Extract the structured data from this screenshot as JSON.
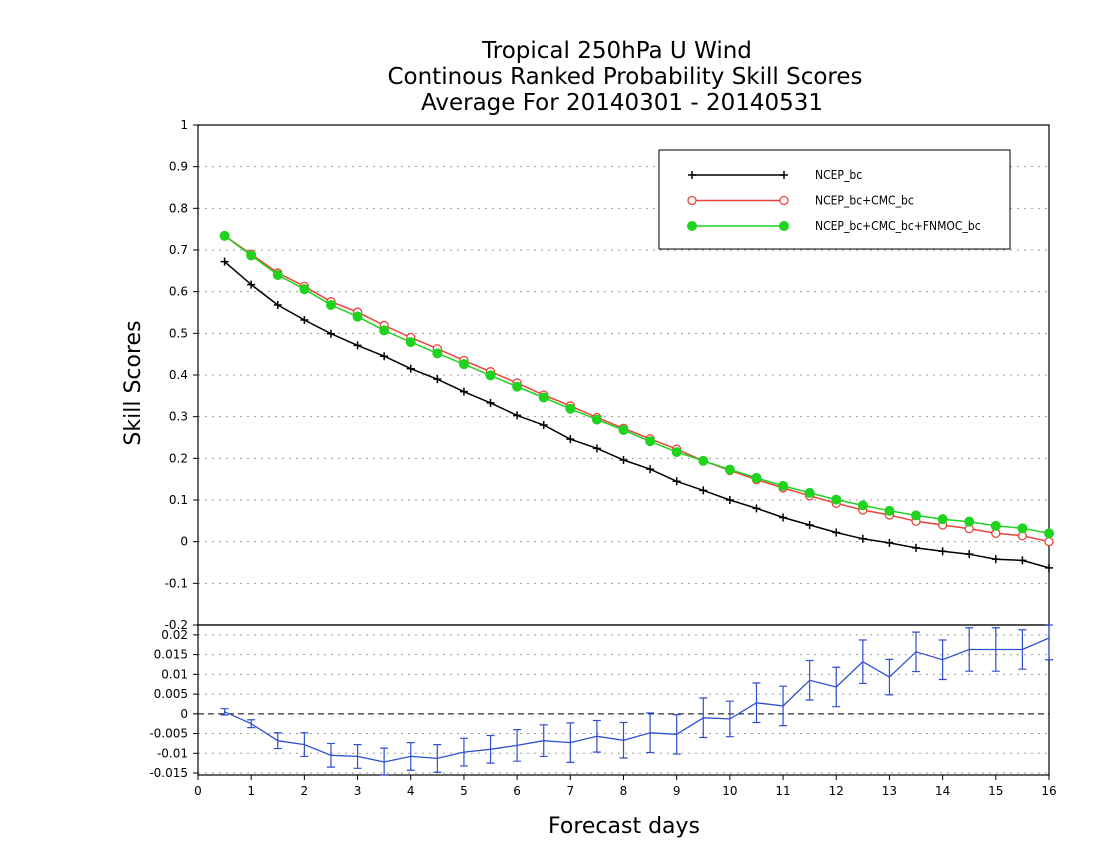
{
  "title_lines": [
    "Tropical 250hPa U Wind",
    "Continous Ranked Probability Skill Scores",
    "Average For 20140301 - 20140531"
  ],
  "colors": {
    "ncep": "#000000",
    "cmc": "#e8443a",
    "fnmoc": "#1fd31f",
    "diff": "#3050d0"
  },
  "chart_data": [
    {
      "type": "line",
      "ylabel": "Skill Scores",
      "xlim": [
        0,
        16
      ],
      "ylim": [
        -0.2,
        1
      ],
      "xticks": [
        "0",
        "1",
        "2",
        "3",
        "4",
        "5",
        "6",
        "7",
        "8",
        "9",
        "10",
        "11",
        "12",
        "13",
        "14",
        "15",
        "16"
      ],
      "yticks": [
        "-0.2",
        "-0.1",
        "0",
        "0.1",
        "0.2",
        "0.3",
        "0.4",
        "0.5",
        "0.6",
        "0.7",
        "0.8",
        "0.9",
        "1"
      ],
      "grid": true,
      "legend_position": "top-right",
      "x": [
        0.5,
        1,
        1.5,
        2,
        2.5,
        3,
        3.5,
        4,
        4.5,
        5,
        5.5,
        6,
        6.5,
        7,
        7.5,
        8,
        8.5,
        9,
        9.5,
        10,
        10.5,
        11,
        11.5,
        12,
        12.5,
        13,
        13.5,
        14,
        14.5,
        15,
        15.5,
        16
      ],
      "series": [
        {
          "name": "NCEP_bc",
          "marker": "plus",
          "values": [
            0.672,
            0.617,
            0.568,
            0.532,
            0.499,
            0.471,
            0.445,
            0.415,
            0.39,
            0.36,
            0.333,
            0.303,
            0.28,
            0.246,
            0.224,
            0.196,
            0.174,
            0.145,
            0.123,
            0.1,
            0.08,
            0.058,
            0.04,
            0.022,
            0.007,
            -0.003,
            -0.015,
            -0.023,
            -0.03,
            -0.042,
            -0.045,
            -0.063
          ]
        },
        {
          "name": "NCEP_bc+CMC_bc",
          "marker": "open-circle",
          "values": [
            0.734,
            0.69,
            0.645,
            0.613,
            0.576,
            0.551,
            0.519,
            0.49,
            0.463,
            0.435,
            0.408,
            0.381,
            0.352,
            0.326,
            0.298,
            0.272,
            0.247,
            0.222,
            0.194,
            0.171,
            0.149,
            0.129,
            0.11,
            0.092,
            0.076,
            0.064,
            0.049,
            0.04,
            0.031,
            0.02,
            0.014,
            0.0
          ]
        },
        {
          "name": "NCEP_bc+CMC_bc+FNMOC_bc",
          "marker": "filled-circle",
          "values": [
            0.734,
            0.687,
            0.64,
            0.606,
            0.568,
            0.54,
            0.507,
            0.479,
            0.452,
            0.426,
            0.399,
            0.372,
            0.346,
            0.319,
            0.293,
            0.268,
            0.241,
            0.215,
            0.194,
            0.173,
            0.153,
            0.134,
            0.117,
            0.101,
            0.087,
            0.074,
            0.063,
            0.054,
            0.048,
            0.038,
            0.032,
            0.02
          ]
        }
      ]
    },
    {
      "type": "line",
      "xlabel": "Forecast days",
      "xlim": [
        0,
        16
      ],
      "ylim": [
        -0.0155,
        0.0225
      ],
      "yticks": [
        "-0.015",
        "-0.01",
        "-0.005",
        "0",
        "0.005",
        "0.01",
        "0.015",
        "0.02"
      ],
      "grid": true,
      "zero_line": "dashed",
      "series": [
        {
          "marker": "error-bar",
          "x": [
            0.5,
            1,
            1.5,
            2,
            2.5,
            3,
            3.5,
            4,
            4.5,
            5,
            5.5,
            6,
            6.5,
            7,
            7.5,
            8,
            8.5,
            9,
            9.5,
            10,
            10.5,
            11,
            11.5,
            12,
            12.5,
            13,
            13.5,
            14,
            14.5,
            15,
            15.5,
            16
          ],
          "values": [
            0.0005,
            -0.0025,
            -0.0068,
            -0.0078,
            -0.0105,
            -0.0108,
            -0.0122,
            -0.0108,
            -0.0113,
            -0.0097,
            -0.009,
            -0.008,
            -0.0068,
            -0.0073,
            -0.0057,
            -0.0067,
            -0.0048,
            -0.0052,
            -0.001,
            -0.0013,
            0.0028,
            0.002,
            0.0085,
            0.0068,
            0.0132,
            0.0093,
            0.0157,
            0.0137,
            0.0163,
            0.0163,
            0.0163,
            0.0192
          ],
          "errors": [
            0.0008,
            0.001,
            0.002,
            0.003,
            0.003,
            0.003,
            0.0035,
            0.0035,
            0.0035,
            0.0035,
            0.0035,
            0.004,
            0.004,
            0.005,
            0.004,
            0.0045,
            0.005,
            0.005,
            0.005,
            0.0045,
            0.005,
            0.005,
            0.005,
            0.005,
            0.0055,
            0.0045,
            0.005,
            0.005,
            0.0055,
            0.0055,
            0.005,
            0.0055
          ]
        }
      ]
    }
  ]
}
